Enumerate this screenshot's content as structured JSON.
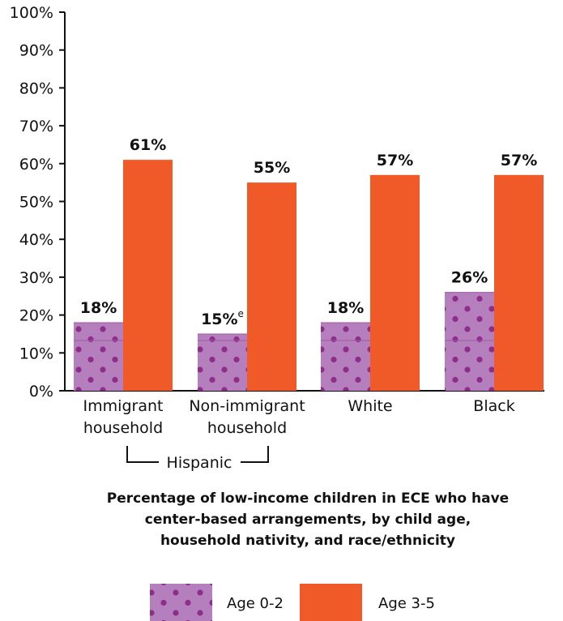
{
  "chart_data": {
    "type": "bar",
    "categories": [
      [
        "Immigrant",
        "household"
      ],
      [
        "Non-immigrant",
        "household"
      ],
      [
        "White"
      ],
      [
        "Black"
      ]
    ],
    "group_label": "Hispanic",
    "series": [
      {
        "name": "Age 0-2",
        "values": [
          18,
          15,
          18,
          26
        ],
        "labels": [
          "18%",
          "15%",
          "18%",
          "26%"
        ],
        "superscripts": [
          "",
          "e",
          "",
          ""
        ],
        "color": "#b57ebc",
        "dot_color": "#8e2d8a",
        "pattern": "dots"
      },
      {
        "name": "Age 3-5",
        "values": [
          61,
          55,
          57,
          57
        ],
        "labels": [
          "61%",
          "55%",
          "57%",
          "57%"
        ],
        "superscripts": [
          "",
          "",
          "",
          ""
        ],
        "color": "#f05a28",
        "pattern": "solid"
      }
    ],
    "y_ticks": [
      "0%",
      "10%",
      "20%",
      "30%",
      "40%",
      "50%",
      "60%",
      "70%",
      "80%",
      "90%",
      "100%"
    ],
    "ylim": [
      0,
      100
    ],
    "title_lines": [
      "Percentage of low-income children in ECE who have",
      "center-based arrangements, by child age,",
      "household nativity, and race/ethnicity"
    ],
    "legend_position": "bottom"
  }
}
